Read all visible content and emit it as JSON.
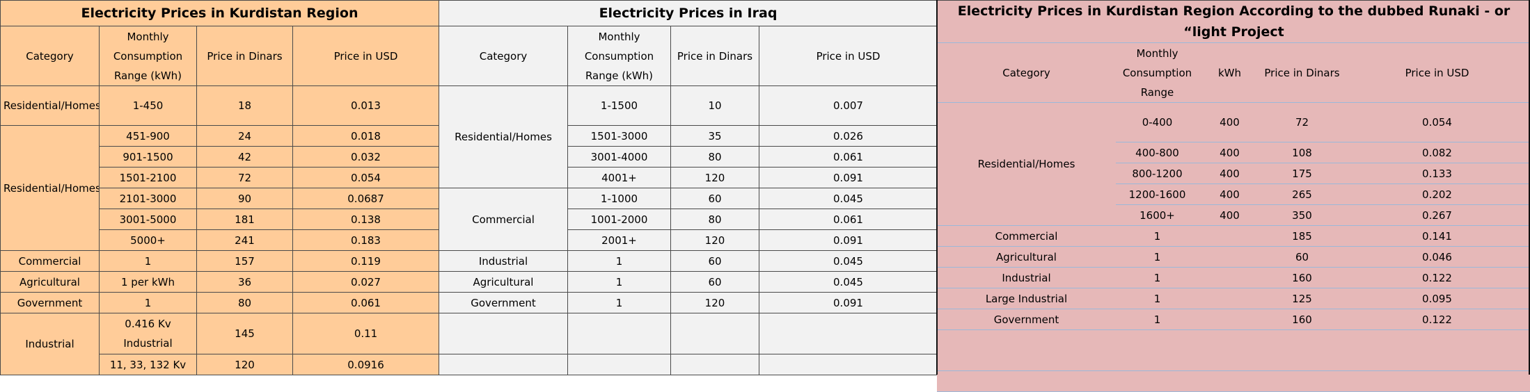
{
  "tables": [
    {
      "title": "Electricity Prices in Kurdistan Region",
      "headers": [
        "Category",
        "Monthly Consumption Range (kWh)",
        "Price in Dinars",
        "Price in USD"
      ],
      "rows": [
        {
          "category": "Residential/Homes",
          "range": "1-450",
          "dinars": "18",
          "usd": "0.013"
        },
        {
          "category": "Residential/Homes",
          "range": "451-900",
          "dinars": "24",
          "usd": "0.018"
        },
        {
          "range": "901-1500",
          "dinars": "42",
          "usd": "0.032"
        },
        {
          "range": "1501-2100",
          "dinars": "72",
          "usd": "0.054"
        },
        {
          "range": "2101-3000",
          "dinars": "90",
          "usd": "0.0687"
        },
        {
          "range": "3001-5000",
          "dinars": "181",
          "usd": "0.138"
        },
        {
          "range": "5000+",
          "dinars": "241",
          "usd": "0.183"
        },
        {
          "category": "Commercial",
          "range": "1",
          "dinars": "157",
          "usd": "0.119"
        },
        {
          "category": "Agricultural",
          "range": "1 per kWh",
          "dinars": "36",
          "usd": "0.027"
        },
        {
          "category": "Government",
          "range": "1",
          "dinars": "80",
          "usd": "0.061"
        },
        {
          "category": "Industrial",
          "range": "0.416 Kv Industrial",
          "dinars": "145",
          "usd": "0.11"
        },
        {
          "range": "11, 33, 132 Kv",
          "dinars": "120",
          "usd": "0.0916"
        }
      ]
    },
    {
      "title": "Electricity Prices in Iraq",
      "headers": [
        "Category",
        "Monthly Consumption Range (kWh)",
        "Price in Dinars",
        "Price in USD"
      ],
      "rows": [
        {
          "category": "Residential/Homes",
          "range": "1-1500",
          "dinars": "10",
          "usd": "0.007"
        },
        {
          "range": "1501-3000",
          "dinars": "35",
          "usd": "0.026"
        },
        {
          "range": "3001-4000",
          "dinars": "80",
          "usd": "0.061"
        },
        {
          "range": "4001+",
          "dinars": "120",
          "usd": "0.091"
        },
        {
          "category": "Commercial",
          "range": "1-1000",
          "dinars": "60",
          "usd": "0.045"
        },
        {
          "range": "1001-2000",
          "dinars": "80",
          "usd": "0.061"
        },
        {
          "range": "2001+",
          "dinars": "120",
          "usd": "0.091"
        },
        {
          "category": "Industrial",
          "range": "1",
          "dinars": "60",
          "usd": "0.045"
        },
        {
          "category": "Agricultural",
          "range": "1",
          "dinars": "60",
          "usd": "0.045"
        },
        {
          "category": "Government",
          "range": "1",
          "dinars": "120",
          "usd": "0.091"
        }
      ]
    },
    {
      "title": "Electricity Prices in Kurdistan Region According to the dubbed Runaki - or “light Project",
      "headers": [
        "Category",
        "Monthly Consumption Range",
        "kWh",
        "Price in Dinars",
        "Price in USD"
      ],
      "rows": [
        {
          "category": "Residential/Homes",
          "range": "0-400",
          "kwh": "400",
          "dinars": "72",
          "usd": "0.054"
        },
        {
          "range": "400-800",
          "kwh": "400",
          "dinars": "108",
          "usd": "0.082"
        },
        {
          "range": "800-1200",
          "kwh": "400",
          "dinars": "175",
          "usd": "0.133"
        },
        {
          "range": "1200-1600",
          "kwh": "400",
          "dinars": "265",
          "usd": "0.202"
        },
        {
          "range": "1600+",
          "kwh": "400",
          "dinars": "350",
          "usd": "0.267"
        },
        {
          "category": "Commercial",
          "range": "1",
          "dinars": "185",
          "usd": "0.141"
        },
        {
          "category": "Agricultural",
          "range": "1",
          "dinars": "60",
          "usd": "0.046"
        },
        {
          "category": "Industrial",
          "range": "1",
          "dinars": "160",
          "usd": "0.122"
        },
        {
          "category": "Large Industrial",
          "range": "1",
          "dinars": "125",
          "usd": "0.095"
        },
        {
          "category": "Government",
          "range": "1",
          "dinars": "160",
          "usd": "0.122"
        }
      ]
    }
  ]
}
